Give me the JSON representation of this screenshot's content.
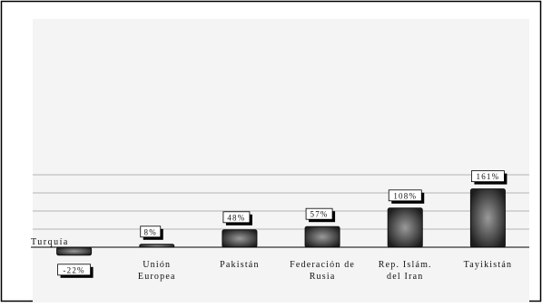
{
  "chart_data": {
    "type": "bar",
    "categories": [
      "Turquía",
      "Unión Europea",
      "Pakistán",
      "Federación de Rusia",
      "Rep. Islám. del Iran",
      "Tayikistán"
    ],
    "category_lines": [
      [
        "Turquía"
      ],
      [
        "Unión",
        "Europea"
      ],
      [
        "Pakistán"
      ],
      [
        "Federación de",
        "Rusia"
      ],
      [
        "Rep. Islám.",
        "del Iran"
      ],
      [
        "Tayikistán"
      ]
    ],
    "values": [
      -22,
      8,
      48,
      57,
      108,
      161
    ],
    "data_labels": [
      "-22%",
      "8%",
      "48%",
      "57%",
      "108%",
      "161%"
    ],
    "title": "",
    "xlabel": "",
    "ylabel": "",
    "ylim": [
      -40,
      200
    ],
    "gridlines": [
      50,
      100,
      150,
      200
    ],
    "grid": true,
    "legend": "none",
    "colors": {
      "plot_background": "#f4f4f4",
      "bar_dark": "#1e1e1e",
      "bar_light": "#9a9a9a",
      "gridline": "#b4b4b4",
      "label_shadow": "#000000"
    }
  }
}
